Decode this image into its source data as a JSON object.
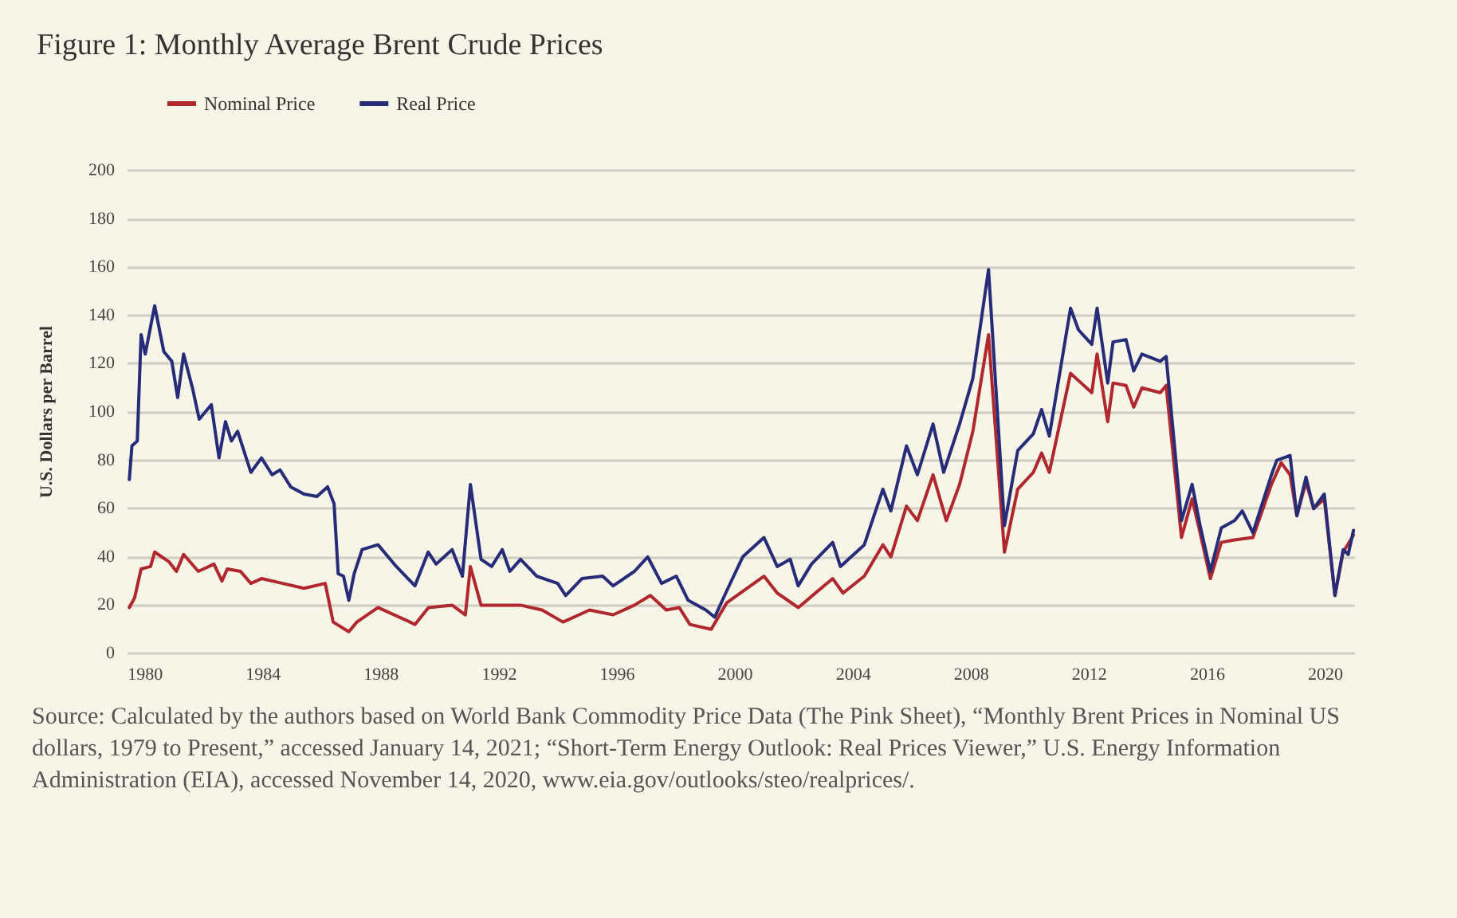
{
  "chart_data": {
    "type": "line",
    "title": "Figure 1: Monthly Average Brent Crude Prices",
    "ylabel": "U.S. Dollars per Barrel",
    "annotations": [
      "Source: Calculated by the authors based on World Bank Commodity Price Data (The Pink Sheet), “Monthly Brent Prices in Nominal US dollars, 1979 to Present,” accessed January 14, 2021; “Short-Term Energy Outlook: Real Prices Viewer,” U.S. Energy Information Administration (EIA), accessed November 14, 2020, www.eia.gov/outlooks/steo/realprices/."
    ],
    "xlim": [
      1979.4,
      2021
    ],
    "xticks": [
      1980,
      1984,
      1988,
      1992,
      1996,
      2000,
      2004,
      2008,
      2012,
      2016,
      2020
    ],
    "ylim": [
      0,
      200
    ],
    "yticks": [
      0,
      20,
      40,
      60,
      80,
      100,
      120,
      140,
      160,
      180,
      200
    ],
    "grid": "y",
    "legend": "top left",
    "marker": "none",
    "line_style": "solid",
    "series": [
      {
        "name": "Nominal Price",
        "color": "#b0282e",
        "x": [
          1979.46,
          1979.64,
          1979.86,
          1980.18,
          1980.32,
          1980.8,
          1981.06,
          1981.3,
          1981.8,
          1982.33,
          1982.6,
          1982.78,
          1983.23,
          1983.58,
          1983.94,
          1984.66,
          1985.38,
          1986.1,
          1986.37,
          1986.9,
          1987.17,
          1987.89,
          1988.8,
          1989.14,
          1989.6,
          1990.4,
          1990.85,
          1991.02,
          1991.38,
          1992.1,
          1992.72,
          1993.45,
          1994.16,
          1995.06,
          1995.86,
          1996.58,
          1997.12,
          1997.66,
          1998.1,
          1998.46,
          1999.18,
          1999.71,
          2000.97,
          2001.42,
          2002.13,
          2003.3,
          2003.65,
          2004.37,
          2005.0,
          2005.27,
          2005.8,
          2006.17,
          2006.7,
          2007.15,
          2007.6,
          2008.05,
          2008.58,
          2009.12,
          2009.57,
          2010.1,
          2010.38,
          2010.64,
          2011.36,
          2011.63,
          2012.08,
          2012.26,
          2012.62,
          2012.8,
          2013.24,
          2013.5,
          2013.78,
          2014.4,
          2014.6,
          2015.12,
          2015.48,
          2015.75,
          2016.1,
          2016.47,
          2016.92,
          2017.54,
          2018.17,
          2018.5,
          2018.8,
          2019.03,
          2019.34,
          2019.6,
          2019.96,
          2020.32,
          2020.6,
          2020.95
        ],
        "values": [
          19,
          23,
          35,
          36,
          42,
          38,
          34,
          41,
          34,
          37,
          30,
          35,
          34,
          29,
          31,
          29,
          27,
          29,
          13,
          9,
          13,
          19,
          14,
          12,
          19,
          20,
          16,
          36,
          20,
          20,
          20,
          18,
          13,
          18,
          16,
          20,
          24,
          18,
          19,
          12,
          10,
          21,
          32,
          25,
          19,
          31,
          25,
          32,
          45,
          40,
          61,
          55,
          74,
          55,
          70,
          92,
          132,
          42,
          68,
          75,
          83,
          75,
          116,
          113,
          108,
          124,
          96,
          112,
          111,
          102,
          110,
          108,
          111,
          48,
          64,
          50,
          31,
          46,
          47,
          48,
          70,
          79,
          74,
          57,
          71,
          60,
          64,
          24,
          42,
          49
        ]
      },
      {
        "name": "Real Price",
        "color": "#262c78",
        "x": [
          1979.46,
          1979.55,
          1979.73,
          1979.86,
          1980.0,
          1980.32,
          1980.63,
          1980.9,
          1981.1,
          1981.3,
          1981.6,
          1981.83,
          1982.24,
          1982.5,
          1982.72,
          1982.92,
          1983.13,
          1983.58,
          1983.94,
          1984.3,
          1984.57,
          1984.93,
          1985.38,
          1985.82,
          1986.18,
          1986.4,
          1986.54,
          1986.72,
          1986.9,
          1987.08,
          1987.35,
          1987.89,
          1988.51,
          1989.14,
          1989.59,
          1989.86,
          1990.4,
          1990.75,
          1991.02,
          1991.38,
          1991.74,
          1992.1,
          1992.36,
          1992.72,
          1993.27,
          1993.98,
          1994.25,
          1994.8,
          1995.5,
          1995.86,
          1996.58,
          1997.03,
          1997.5,
          1998.0,
          1998.4,
          1999.0,
          1999.3,
          1999.71,
          2000.25,
          2000.97,
          2001.42,
          2001.86,
          2002.13,
          2002.58,
          2003.3,
          2003.56,
          2004.37,
          2005.0,
          2005.27,
          2005.8,
          2006.17,
          2006.7,
          2007.06,
          2007.6,
          2008.05,
          2008.58,
          2009.12,
          2009.57,
          2010.1,
          2010.38,
          2010.64,
          2011.36,
          2011.63,
          2012.08,
          2012.26,
          2012.62,
          2012.8,
          2013.24,
          2013.5,
          2013.78,
          2014.4,
          2014.6,
          2015.12,
          2015.48,
          2015.75,
          2016.1,
          2016.47,
          2016.92,
          2017.18,
          2017.54,
          2018.17,
          2018.35,
          2018.8,
          2019.03,
          2019.34,
          2019.6,
          2019.96,
          2020.32,
          2020.6,
          2020.77,
          2020.95
        ],
        "values": [
          72,
          86,
          88,
          132,
          124,
          144,
          125,
          121,
          106,
          124,
          110,
          97,
          103,
          81,
          96,
          88,
          92,
          75,
          81,
          74,
          76,
          69,
          66,
          65,
          69,
          62,
          33,
          32,
          22,
          33,
          43,
          45,
          36,
          28,
          42,
          37,
          43,
          32,
          70,
          39,
          36,
          43,
          34,
          39,
          32,
          29,
          24,
          31,
          32,
          28,
          34,
          40,
          29,
          32,
          22,
          18,
          15,
          26,
          40,
          48,
          36,
          39,
          28,
          37,
          46,
          36,
          45,
          68,
          59,
          86,
          74,
          95,
          75,
          95,
          114,
          159,
          53,
          84,
          91,
          101,
          90,
          143,
          134,
          128,
          143,
          112,
          129,
          130,
          117,
          124,
          121,
          123,
          55,
          70,
          53,
          34,
          52,
          55,
          59,
          50,
          74,
          80,
          82,
          57,
          73,
          60,
          66,
          24,
          43,
          41,
          51
        ]
      }
    ]
  }
}
